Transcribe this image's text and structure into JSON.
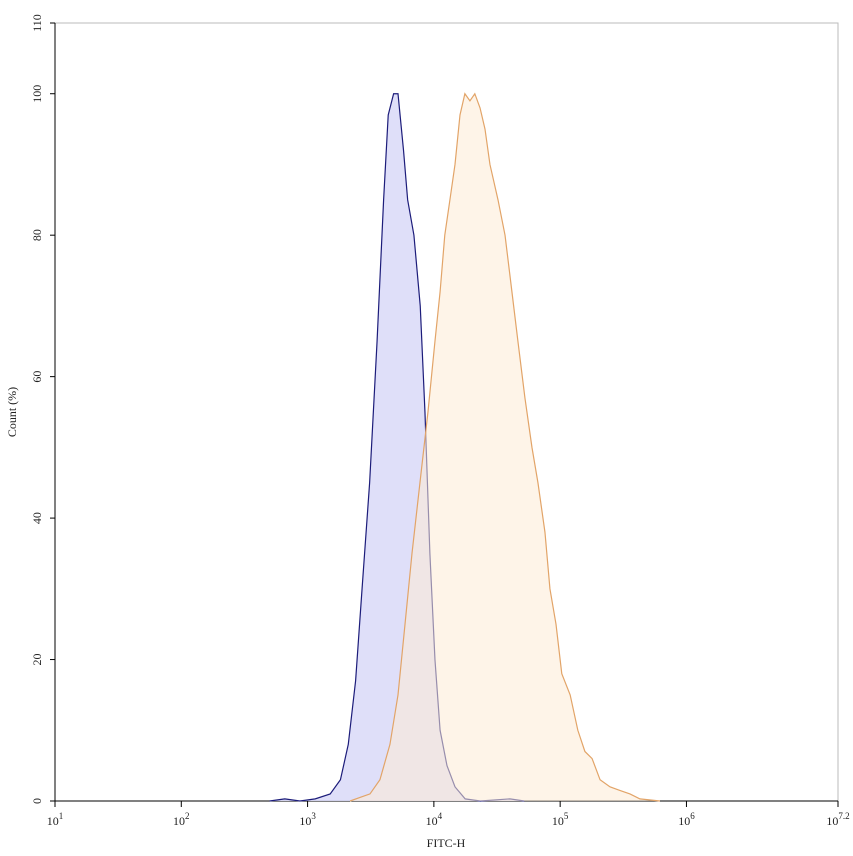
{
  "chart_data": {
    "type": "histogram-line",
    "x_label": "FITC-H",
    "y_label": "Count (%)",
    "xscale": "log",
    "xlim": [
      10,
      15848931.92
    ],
    "xticks": [
      {
        "value": 10,
        "label": "10",
        "exponent": "1"
      },
      {
        "value": 100,
        "label": "10",
        "exponent": "2"
      },
      {
        "value": 1000,
        "label": "10",
        "exponent": "3"
      },
      {
        "value": 10000,
        "label": "10",
        "exponent": "4"
      },
      {
        "value": 100000,
        "label": "10",
        "exponent": "5"
      },
      {
        "value": 1000000,
        "label": "10",
        "exponent": "6"
      },
      {
        "value": 15848931.92,
        "label": "10",
        "exponent": "7.2"
      }
    ],
    "ylim": [
      0,
      110
    ],
    "yticks": [
      0,
      20,
      40,
      60,
      80,
      100,
      110
    ],
    "series": [
      {
        "color": "#1c1c7a",
        "fill": "#dcdcf8",
        "x": [
          500,
          660,
          870,
          1150,
          1510,
          1820,
          2100,
          2400,
          2700,
          3100,
          3550,
          4000,
          4350,
          4800,
          5200,
          5750,
          6200,
          6950,
          7800,
          8500,
          9300,
          10200,
          11200,
          12700,
          14700,
          17700,
          23300,
          40000,
          52000
        ],
        "values": [
          0,
          0.3,
          0,
          0.3,
          1,
          3,
          8,
          17,
          30,
          45,
          65,
          85,
          97,
          100,
          100,
          92,
          85,
          80,
          70,
          55,
          35,
          20,
          10,
          5,
          2,
          0.3,
          0,
          0.3,
          0
        ]
      },
      {
        "color": "#e2a468",
        "fill": "#fdebd6",
        "x": [
          2170,
          2600,
          3120,
          3740,
          4490,
          5200,
          5910,
          6710,
          7760,
          8980,
          10200,
          11200,
          12200,
          13400,
          14700,
          16100,
          17600,
          19300,
          21100,
          23200,
          25400,
          27800,
          32200,
          36600,
          41500,
          46300,
          52600,
          59800,
          66700,
          75800,
          83000,
          92700,
          103000,
          120000,
          138000,
          157000,
          179000,
          207000,
          248000,
          297000,
          357000,
          428000,
          617000
        ],
        "values": [
          0,
          0.5,
          1,
          3,
          8,
          15,
          25,
          35,
          45,
          55,
          65,
          72,
          80,
          85,
          90,
          97,
          100,
          99,
          100,
          98,
          95,
          90,
          85,
          80,
          72,
          65,
          57,
          50,
          45,
          38,
          30,
          25,
          18,
          15,
          10,
          7,
          6,
          3,
          2,
          1.5,
          1,
          0.3,
          0
        ]
      }
    ]
  }
}
